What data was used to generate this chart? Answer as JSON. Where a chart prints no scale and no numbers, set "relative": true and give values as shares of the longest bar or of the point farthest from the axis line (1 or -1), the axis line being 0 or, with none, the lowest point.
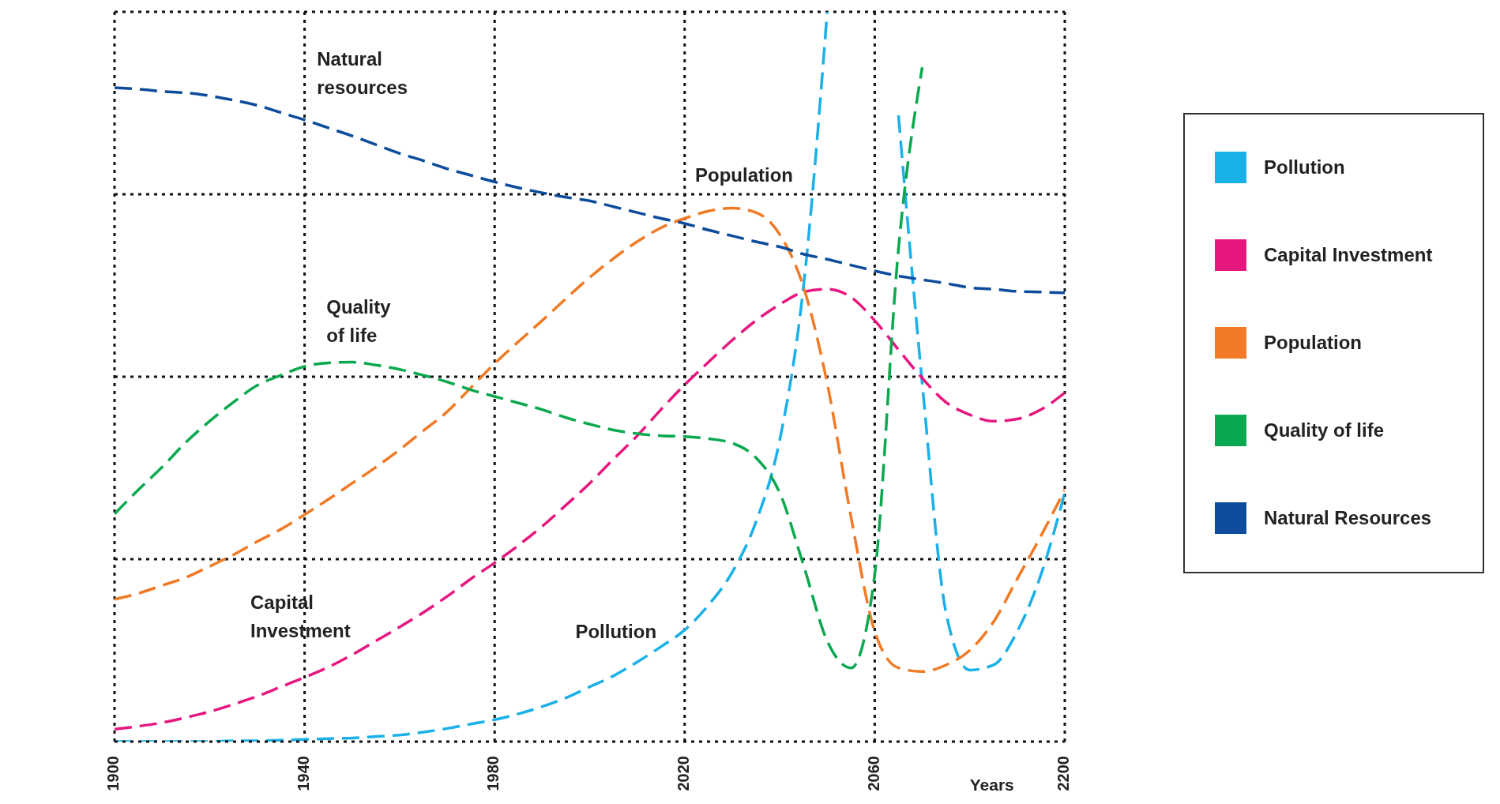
{
  "chart_data": {
    "type": "line",
    "relative": true,
    "categories": [
      "1900",
      null,
      null,
      null,
      null,
      null,
      null,
      null,
      "1940",
      null,
      null,
      null,
      null,
      null,
      null,
      null,
      "1980",
      null,
      null,
      null,
      null,
      null,
      null,
      null,
      "2020",
      null,
      null,
      null,
      null,
      null,
      null,
      null,
      "2060",
      null,
      null,
      null,
      null,
      null,
      null,
      null,
      "2200"
    ],
    "series": [
      {
        "name": "Pollution",
        "color": "#1ab0e8",
        "values": [
          0,
          0,
          0,
          0,
          0,
          0.001,
          0.001,
          0.002,
          0.003,
          0.004,
          0.005,
          0.007,
          0.009,
          0.013,
          0.018,
          0.024,
          0.03,
          0.038,
          0.048,
          0.06,
          0.075,
          0.09,
          0.109,
          0.13,
          0.153,
          0.187,
          0.232,
          0.301,
          0.413,
          0.623,
          1,
          null,
          null,
          0.858,
          0.491,
          0.177,
          0.098,
          0.105,
          0.151,
          0.229,
          0.341
        ]
      },
      {
        "name": "Capital Investment",
        "color": "#e6177f",
        "values": [
          0.017,
          0.021,
          0.026,
          0.033,
          0.041,
          0.051,
          0.062,
          0.075,
          0.088,
          0.102,
          0.119,
          0.138,
          0.157,
          0.177,
          0.199,
          0.223,
          0.245,
          0.269,
          0.295,
          0.324,
          0.354,
          0.387,
          0.419,
          0.455,
          0.489,
          0.52,
          0.55,
          0.577,
          0.599,
          0.616,
          0.62,
          0.609,
          0.577,
          0.537,
          0.498,
          0.465,
          0.448,
          0.439,
          0.442,
          0.455,
          0.478
        ]
      },
      {
        "name": "Population",
        "color": "#f07a25",
        "values": [
          0.195,
          0.203,
          0.214,
          0.225,
          0.24,
          0.256,
          0.274,
          0.291,
          0.311,
          0.332,
          0.354,
          0.376,
          0.4,
          0.426,
          0.452,
          0.485,
          0.518,
          0.548,
          0.577,
          0.607,
          0.636,
          0.662,
          0.685,
          0.704,
          0.717,
          0.727,
          0.731,
          0.725,
          0.695,
          0.623,
          0.491,
          0.308,
          0.151,
          0.101,
          0.096,
          0.105,
          0.125,
          0.164,
          0.223,
          0.282,
          0.345
        ]
      },
      {
        "name": "Quality of life",
        "color": "#0aa84f",
        "values": [
          0.312,
          0.345,
          0.376,
          0.41,
          0.439,
          0.465,
          0.488,
          0.502,
          0.514,
          0.519,
          0.52,
          0.516,
          0.51,
          0.502,
          0.493,
          0.482,
          0.473,
          0.464,
          0.455,
          0.444,
          0.435,
          0.427,
          0.422,
          0.419,
          0.418,
          0.415,
          0.409,
          0.389,
          0.341,
          0.242,
          0.138,
          0.101,
          0.229,
          0.675,
          0.924,
          null,
          null,
          null,
          null,
          null,
          null
        ]
      },
      {
        "name": "Natural Resources",
        "color": "#0d4c9c",
        "values": [
          0.896,
          0.894,
          0.891,
          0.889,
          0.885,
          0.879,
          0.872,
          0.862,
          0.852,
          0.841,
          0.83,
          0.818,
          0.806,
          0.796,
          0.785,
          0.776,
          0.767,
          0.759,
          0.752,
          0.746,
          0.741,
          0.733,
          0.725,
          0.717,
          0.71,
          0.701,
          0.693,
          0.685,
          0.678,
          0.668,
          0.661,
          0.653,
          0.645,
          0.638,
          0.633,
          0.628,
          0.622,
          0.62,
          0.617,
          0.616,
          0.615
        ]
      }
    ],
    "annotations": [
      "Natural resources",
      "Population",
      "Quality of life",
      "Capital Investment",
      "Pollution",
      "Years"
    ],
    "grid": true,
    "legend": "right",
    "line_style": "dashed",
    "marker": "none"
  }
}
